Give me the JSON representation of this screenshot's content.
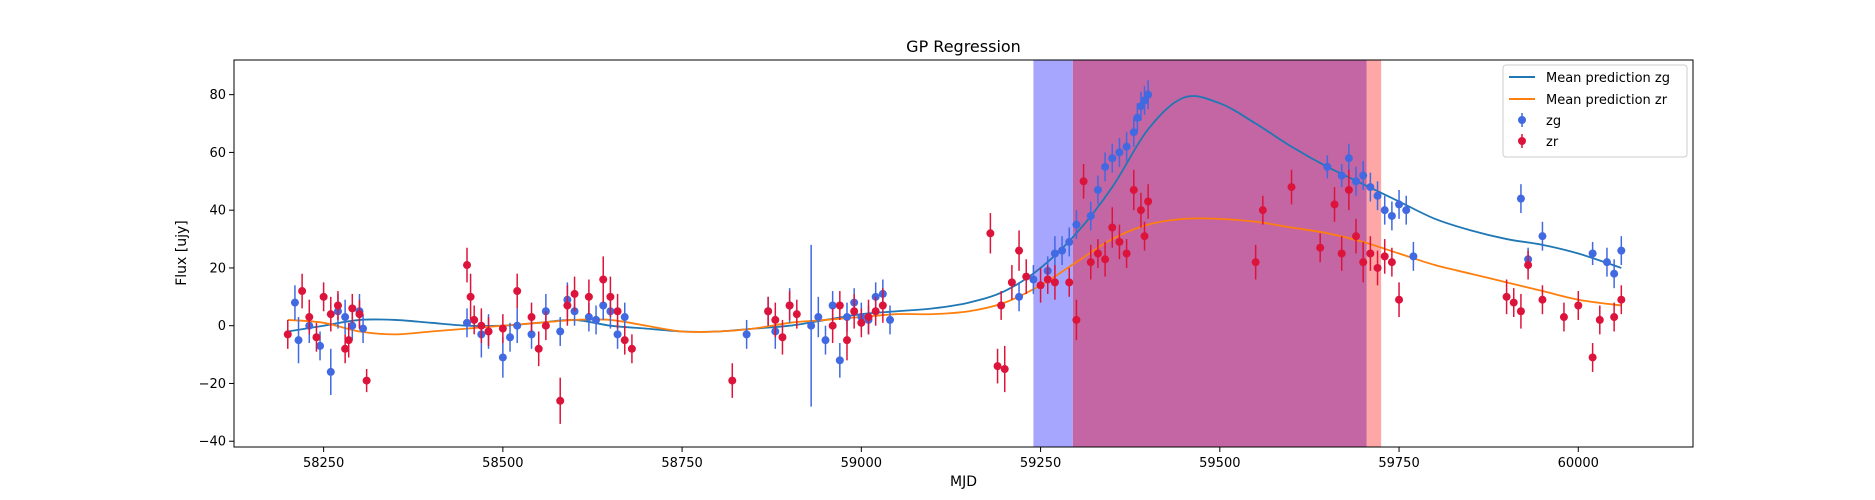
{
  "chart_data": {
    "type": "scatter",
    "title": "GP Regression",
    "xlabel": "MJD",
    "ylabel": "Flux [ujy]",
    "xlim": [
      58125,
      60160
    ],
    "ylim": [
      -42,
      92
    ],
    "x_ticks": [
      58250,
      58500,
      58750,
      59000,
      59250,
      59500,
      59750,
      60000
    ],
    "y_ticks": [
      -40,
      -20,
      0,
      20,
      40,
      60,
      80
    ],
    "grid": false,
    "legend": {
      "placement": "top-right",
      "entries": [
        "Mean prediction zg",
        "Mean prediction zr",
        "zg",
        "zr"
      ]
    },
    "shaded_regions": [
      {
        "x0": 59240,
        "x1": 59295,
        "color": "#a6a6ff"
      },
      {
        "x0": 59295,
        "x1": 59705,
        "color": "#c466a3"
      },
      {
        "x0": 59705,
        "x1": 59725,
        "color": "#ffa6a6"
      }
    ],
    "series": [
      {
        "name": "Mean prediction zg",
        "kind": "line",
        "color": "#1f77b4",
        "x": [
          58200,
          58250,
          58300,
          58350,
          58400,
          58450,
          58500,
          58550,
          58600,
          58650,
          58700,
          58750,
          58800,
          58850,
          58900,
          58950,
          59000,
          59050,
          59100,
          59150,
          59200,
          59250,
          59300,
          59350,
          59400,
          59450,
          59500,
          59550,
          59600,
          59650,
          59700,
          59750,
          59800,
          59850,
          59900,
          59950,
          60000,
          60060
        ],
        "y": [
          -2,
          0,
          2,
          2,
          1,
          0,
          0,
          1,
          2,
          0,
          -1,
          -2,
          -2,
          -1,
          0,
          2,
          4,
          5,
          6,
          8,
          12,
          20,
          32,
          48,
          68,
          79,
          77,
          70,
          62,
          55,
          49,
          43,
          37,
          33,
          30,
          28,
          25,
          20
        ]
      },
      {
        "name": "Mean prediction zr",
        "kind": "line",
        "color": "#ff7f0e",
        "x": [
          58200,
          58250,
          58300,
          58350,
          58400,
          58450,
          58500,
          58550,
          58600,
          58650,
          58700,
          58750,
          58800,
          58850,
          58900,
          58950,
          59000,
          59050,
          59100,
          59150,
          59200,
          59250,
          59300,
          59350,
          59400,
          59450,
          59500,
          59550,
          59600,
          59650,
          59700,
          59750,
          59800,
          59850,
          59900,
          59950,
          60000,
          60060
        ],
        "y": [
          2,
          1,
          -2,
          -3,
          -2,
          -1,
          0,
          1,
          2,
          2,
          0,
          -2,
          -2,
          -1,
          1,
          2,
          3,
          4,
          4,
          5,
          8,
          14,
          22,
          30,
          35,
          37,
          37,
          36,
          34,
          32,
          29,
          25,
          21,
          18,
          15,
          12,
          9,
          7
        ]
      },
      {
        "name": "zg",
        "kind": "errorbar",
        "color": "#4169e1",
        "x": [
          58210,
          58215,
          58230,
          58245,
          58260,
          58270,
          58280,
          58290,
          58300,
          58305,
          58450,
          58470,
          58480,
          58500,
          58510,
          58520,
          58540,
          58560,
          58580,
          58590,
          58600,
          58620,
          58630,
          58640,
          58650,
          58660,
          58670,
          58840,
          58870,
          58880,
          58900,
          58930,
          58940,
          58950,
          58960,
          58970,
          58980,
          58990,
          59000,
          59010,
          59020,
          59030,
          59040,
          59220,
          59240,
          59260,
          59270,
          59280,
          59290,
          59300,
          59320,
          59330,
          59340,
          59350,
          59360,
          59370,
          59380,
          59385,
          59390,
          59395,
          59400,
          59650,
          59670,
          59680,
          59690,
          59700,
          59710,
          59720,
          59730,
          59740,
          59750,
          59760,
          59770,
          59920,
          59930,
          59950,
          60020,
          60040,
          60050,
          60060
        ],
        "y": [
          8,
          -5,
          0,
          -7,
          -16,
          5,
          3,
          0,
          5,
          -1,
          1,
          -3,
          -2,
          -11,
          -4,
          0,
          -3,
          5,
          -2,
          9,
          5,
          3,
          2,
          7,
          5,
          -3,
          3,
          -3,
          5,
          -2,
          7,
          0,
          3,
          -5,
          7,
          -12,
          3,
          8,
          3,
          2,
          10,
          11,
          2,
          10,
          16,
          19,
          25,
          26,
          29,
          35,
          38,
          47,
          55,
          58,
          60,
          62,
          67,
          72,
          76,
          78,
          80,
          55,
          52,
          58,
          50,
          52,
          48,
          45,
          40,
          38,
          42,
          40,
          24,
          44,
          23,
          31,
          25,
          22,
          18,
          26
        ],
        "err": [
          6,
          8,
          6,
          5,
          8,
          6,
          6,
          5,
          6,
          5,
          5,
          8,
          6,
          7,
          5,
          6,
          5,
          6,
          5,
          6,
          5,
          5,
          5,
          5,
          6,
          5,
          5,
          5,
          5,
          6,
          6,
          28,
          7,
          5,
          5,
          6,
          5,
          5,
          5,
          5,
          5,
          5,
          5,
          5,
          5,
          5,
          6,
          5,
          5,
          5,
          5,
          5,
          5,
          5,
          5,
          5,
          5,
          5,
          5,
          5,
          5,
          4,
          4,
          5,
          5,
          5,
          5,
          5,
          5,
          5,
          5,
          5,
          5,
          5,
          4,
          5,
          4,
          5,
          5,
          5
        ]
      },
      {
        "name": "zr",
        "kind": "errorbar",
        "color": "#dc143c",
        "x": [
          58200,
          58220,
          58230,
          58240,
          58250,
          58260,
          58270,
          58280,
          58285,
          58290,
          58300,
          58310,
          58450,
          58455,
          58460,
          58470,
          58480,
          58500,
          58520,
          58540,
          58550,
          58560,
          58580,
          58590,
          58600,
          58620,
          58640,
          58650,
          58660,
          58670,
          58680,
          58820,
          58870,
          58880,
          58890,
          58900,
          58910,
          58960,
          58970,
          58980,
          58990,
          59000,
          59010,
          59020,
          59030,
          59180,
          59190,
          59195,
          59200,
          59210,
          59220,
          59230,
          59250,
          59260,
          59270,
          59290,
          59300,
          59310,
          59320,
          59330,
          59340,
          59350,
          59360,
          59370,
          59380,
          59390,
          59395,
          59400,
          59550,
          59560,
          59600,
          59640,
          59660,
          59670,
          59680,
          59690,
          59700,
          59710,
          59720,
          59730,
          59740,
          59750,
          59900,
          59910,
          59920,
          59930,
          59950,
          59980,
          60000,
          60020,
          60030,
          60050,
          60060
        ],
        "y": [
          -3,
          12,
          3,
          -4,
          10,
          4,
          7,
          -8,
          -5,
          6,
          4,
          -19,
          21,
          10,
          2,
          0,
          -2,
          -1,
          12,
          3,
          -8,
          0,
          -26,
          7,
          11,
          10,
          16,
          10,
          5,
          -5,
          -8,
          -19,
          5,
          2,
          -4,
          7,
          4,
          0,
          7,
          -5,
          5,
          1,
          3,
          5,
          7,
          32,
          -14,
          7,
          -15,
          15,
          26,
          17,
          14,
          16,
          15,
          15,
          2,
          50,
          22,
          25,
          23,
          34,
          29,
          25,
          47,
          40,
          31,
          43,
          22,
          40,
          48,
          27,
          42,
          25,
          47,
          31,
          22,
          25,
          20,
          24,
          22,
          9,
          10,
          8,
          5,
          21,
          9,
          3,
          7,
          -11,
          2,
          3,
          9
        ],
        "err": [
          5,
          6,
          6,
          5,
          5,
          6,
          5,
          5,
          6,
          5,
          5,
          4,
          6,
          8,
          5,
          6,
          5,
          5,
          6,
          5,
          6,
          5,
          8,
          7,
          6,
          6,
          8,
          7,
          6,
          5,
          5,
          6,
          5,
          6,
          6,
          5,
          5,
          6,
          5,
          7,
          6,
          5,
          6,
          5,
          6,
          7,
          6,
          5,
          8,
          6,
          7,
          6,
          6,
          5,
          6,
          5,
          7,
          6,
          6,
          5,
          6,
          7,
          6,
          5,
          7,
          6,
          5,
          6,
          6,
          5,
          6,
          5,
          6,
          6,
          7,
          6,
          7,
          6,
          6,
          6,
          5,
          6,
          6,
          5,
          6,
          5,
          5,
          5,
          5,
          5,
          5,
          5,
          5
        ]
      }
    ]
  }
}
